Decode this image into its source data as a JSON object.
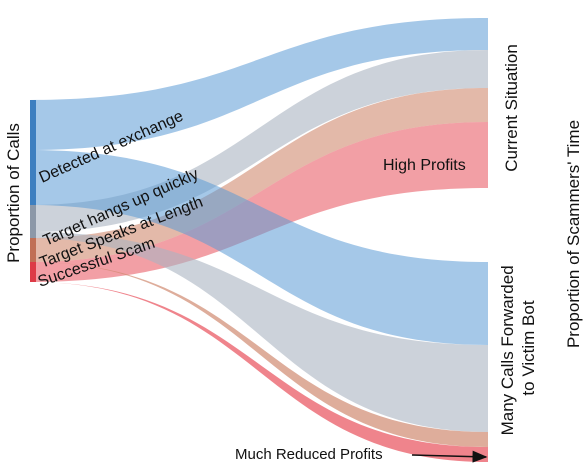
{
  "axis": {
    "left_label": "Proportion of Calls",
    "right_label": "Proportion of Scammers' Time"
  },
  "targets": {
    "current": "Current Situation",
    "forwarded": "Many Calls Forwarded to Victim Bot"
  },
  "flows": [
    {
      "name": "detected",
      "label": "Detected at exchange",
      "color": "#5b9bd5"
    },
    {
      "name": "hangs-up",
      "label": "Target hangs up quickly",
      "color": "#aab4c2"
    },
    {
      "name": "speaks",
      "label": "Target Speaks at Length",
      "color": "#d08a70"
    },
    {
      "name": "scam",
      "label": "Successful Scam",
      "color": "#e8505b"
    }
  ],
  "annotations": {
    "high_profits": "High Profits",
    "reduced_profits": "Much Reduced Profits"
  }
}
